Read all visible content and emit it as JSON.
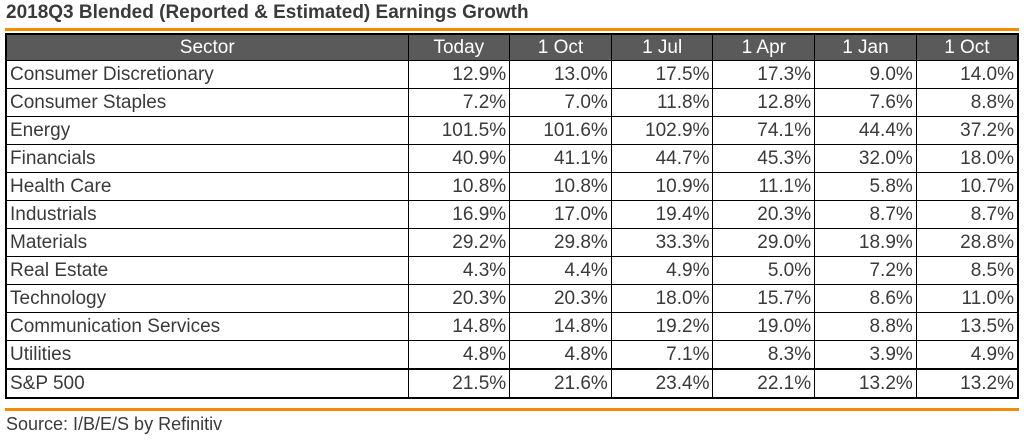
{
  "title": "2018Q3 Blended (Reported & Estimated) Earnings Growth",
  "source": "Source: I/B/E/S by Refinitiv",
  "colors": {
    "accent": "#f28c00",
    "header_bg": "#5a5a5a",
    "header_text": "#ffffff",
    "text": "#3a3a3a"
  },
  "chart_data": {
    "type": "table",
    "title": "2018Q3 Blended (Reported & Estimated) Earnings Growth",
    "columns": [
      "Sector",
      "Today",
      "1 Oct",
      "1 Jul",
      "1 Apr",
      "1 Jan",
      "1 Oct"
    ],
    "rows": [
      {
        "sector": "Consumer Discretionary",
        "values": [
          "12.9%",
          "13.0%",
          "17.5%",
          "17.3%",
          "9.0%",
          "14.0%"
        ]
      },
      {
        "sector": "Consumer Staples",
        "values": [
          "7.2%",
          "7.0%",
          "11.8%",
          "12.8%",
          "7.6%",
          "8.8%"
        ]
      },
      {
        "sector": "Energy",
        "values": [
          "101.5%",
          "101.6%",
          "102.9%",
          "74.1%",
          "44.4%",
          "37.2%"
        ]
      },
      {
        "sector": "Financials",
        "values": [
          "40.9%",
          "41.1%",
          "44.7%",
          "45.3%",
          "32.0%",
          "18.0%"
        ]
      },
      {
        "sector": "Health Care",
        "values": [
          "10.8%",
          "10.8%",
          "10.9%",
          "11.1%",
          "5.8%",
          "10.7%"
        ]
      },
      {
        "sector": "Industrials",
        "values": [
          "16.9%",
          "17.0%",
          "19.4%",
          "20.3%",
          "8.7%",
          "8.7%"
        ]
      },
      {
        "sector": "Materials",
        "values": [
          "29.2%",
          "29.8%",
          "33.3%",
          "29.0%",
          "18.9%",
          "28.8%"
        ]
      },
      {
        "sector": "Real Estate",
        "values": [
          "4.3%",
          "4.4%",
          "4.9%",
          "5.0%",
          "7.2%",
          "8.5%"
        ]
      },
      {
        "sector": "Technology",
        "values": [
          "20.3%",
          "20.3%",
          "18.0%",
          "15.7%",
          "8.6%",
          "11.0%"
        ]
      },
      {
        "sector": "Communication Services",
        "values": [
          "14.8%",
          "14.8%",
          "19.2%",
          "19.0%",
          "8.8%",
          "13.5%"
        ]
      },
      {
        "sector": "Utilities",
        "values": [
          "4.8%",
          "4.8%",
          "7.1%",
          "8.3%",
          "3.9%",
          "4.9%"
        ]
      }
    ],
    "total": {
      "sector": "S&P 500",
      "values": [
        "21.5%",
        "21.6%",
        "23.4%",
        "22.1%",
        "13.2%",
        "13.2%"
      ]
    }
  }
}
